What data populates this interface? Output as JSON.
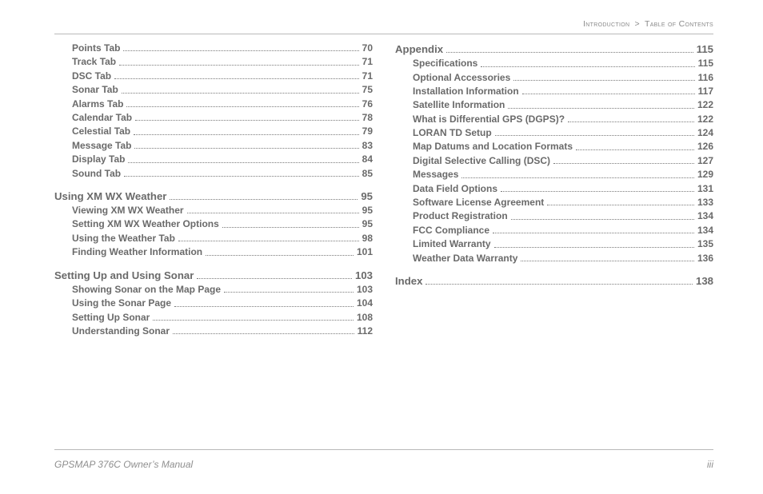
{
  "breadcrumb": {
    "part1": "Introduction",
    "sep": ">",
    "part2": "Table of Contents"
  },
  "footer": {
    "left": "GPSMAP 376C Owner’s Manual",
    "right": "iii"
  },
  "left_col": [
    {
      "type": "group",
      "children": [
        {
          "type": "sub",
          "title": "Points Tab",
          "page": "70"
        },
        {
          "type": "sub",
          "title": "Track Tab",
          "page": "71"
        },
        {
          "type": "sub",
          "title": "DSC Tab",
          "page": "71"
        },
        {
          "type": "sub",
          "title": "Sonar Tab",
          "page": "75"
        },
        {
          "type": "sub",
          "title": "Alarms Tab",
          "page": "76"
        },
        {
          "type": "sub",
          "title": "Calendar Tab",
          "page": "78"
        },
        {
          "type": "sub",
          "title": "Celestial Tab",
          "page": "79"
        },
        {
          "type": "sub",
          "title": "Message Tab",
          "page": "83"
        },
        {
          "type": "sub",
          "title": "Display Tab",
          "page": "84"
        },
        {
          "type": "sub",
          "title": "Sound Tab",
          "page": "85"
        }
      ]
    },
    {
      "type": "section",
      "title": "Using XM WX Weather",
      "page": "95",
      "children": [
        {
          "type": "sub",
          "title": "Viewing XM WX Weather",
          "page": "95"
        },
        {
          "type": "sub",
          "title": "Setting XM WX Weather Options",
          "page": "95"
        },
        {
          "type": "sub",
          "title": "Using the Weather Tab",
          "page": "98"
        },
        {
          "type": "sub",
          "title": "Finding Weather Information",
          "page": "101"
        }
      ]
    },
    {
      "type": "section",
      "title": "Setting Up and Using Sonar",
      "page": "103",
      "children": [
        {
          "type": "sub",
          "title": "Showing Sonar on the Map Page",
          "page": "103"
        },
        {
          "type": "sub",
          "title": "Using the Sonar Page",
          "page": "104"
        },
        {
          "type": "sub",
          "title": "Setting Up Sonar",
          "page": "108"
        },
        {
          "type": "sub",
          "title": "Understanding Sonar",
          "page": "112"
        }
      ]
    }
  ],
  "right_col": [
    {
      "type": "section",
      "title": "Appendix",
      "page": "115",
      "children": [
        {
          "type": "sub",
          "title": "Specifications",
          "page": "115"
        },
        {
          "type": "sub",
          "title": "Optional Accessories",
          "page": "116"
        },
        {
          "type": "sub",
          "title": "Installation Information",
          "page": "117"
        },
        {
          "type": "sub",
          "title": "Satellite Information",
          "page": "122"
        },
        {
          "type": "sub",
          "title": "What is Differential GPS (DGPS)?",
          "page": "122"
        },
        {
          "type": "sub",
          "title": "LORAN TD Setup",
          "page": "124"
        },
        {
          "type": "sub",
          "title": "Map Datums and Location Formats",
          "page": "126"
        },
        {
          "type": "sub",
          "title": "Digital Selective Calling (DSC)",
          "page": "127"
        },
        {
          "type": "sub",
          "title": "Messages",
          "page": "129"
        },
        {
          "type": "sub",
          "title": "Data Field Options",
          "page": "131"
        },
        {
          "type": "sub",
          "title": "Software License Agreement",
          "page": "133"
        },
        {
          "type": "sub",
          "title": "Product Registration",
          "page": "134"
        },
        {
          "type": "sub",
          "title": "FCC Compliance",
          "page": "134"
        },
        {
          "type": "sub",
          "title": "Limited Warranty",
          "page": "135"
        },
        {
          "type": "sub",
          "title": "Weather Data Warranty",
          "page": "136"
        }
      ]
    },
    {
      "type": "section",
      "title": "Index",
      "page": "138",
      "children": []
    }
  ]
}
